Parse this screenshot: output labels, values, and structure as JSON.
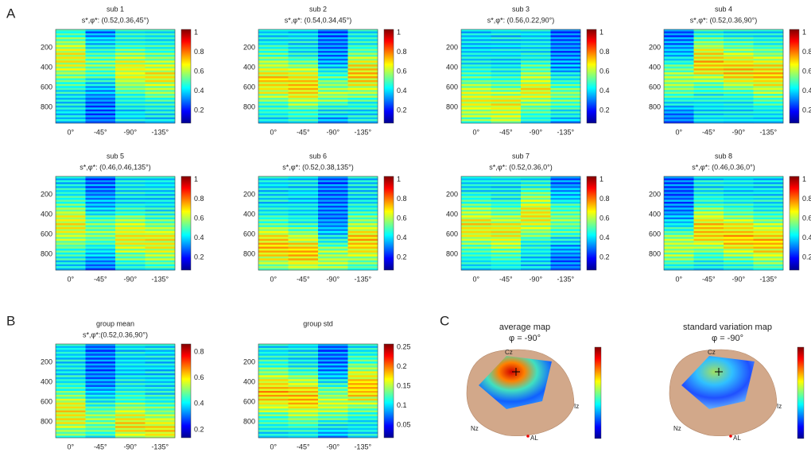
{
  "panel_labels": [
    "A",
    "B",
    "C"
  ],
  "heatmap_yticks": [
    200,
    400,
    600,
    800
  ],
  "heatmap_xticks": [
    "0°",
    "-45°",
    "-90°",
    "-135°"
  ],
  "heatmaps": [
    {
      "title": "sub 1",
      "subtitle": "s*,φ*: (0.52,0.36,45°)",
      "colorbar_ticks": [
        0.2,
        0.4,
        0.6,
        0.8,
        1
      ]
    },
    {
      "title": "sub 2",
      "subtitle": "s*,φ*: (0.54,0.34,45°)",
      "colorbar_ticks": [
        0.2,
        0.4,
        0.6,
        0.8,
        1
      ]
    },
    {
      "title": "sub 3",
      "subtitle": "s*,φ*: (0.56,0.22,90°)",
      "colorbar_ticks": [
        0.2,
        0.4,
        0.6,
        0.8,
        1
      ]
    },
    {
      "title": "sub 4",
      "subtitle": "s*,φ*: (0.52,0.36,90°)",
      "colorbar_ticks": [
        0.2,
        0.4,
        0.6,
        0.8,
        1
      ]
    },
    {
      "title": "sub 5",
      "subtitle": "s*,φ*: (0.46,0.46,135°)",
      "colorbar_ticks": [
        0.2,
        0.4,
        0.6,
        0.8,
        1
      ]
    },
    {
      "title": "sub 6",
      "subtitle": "s*,φ*: (0.52,0.38,135°)",
      "colorbar_ticks": [
        0.2,
        0.4,
        0.6,
        0.8,
        1
      ]
    },
    {
      "title": "sub 7",
      "subtitle": "s*,φ*: (0.52,0.36,0°)",
      "colorbar_ticks": [
        0.2,
        0.4,
        0.6,
        0.8,
        1
      ]
    },
    {
      "title": "sub 8",
      "subtitle": "s*,φ*: (0.46,0.36,0°)",
      "colorbar_ticks": [
        0.2,
        0.4,
        0.6,
        0.8,
        1
      ]
    },
    {
      "title": "group mean",
      "subtitle": "s*,φ*:(0.52,0.36,90°)",
      "colorbar_ticks": [
        0.2,
        0.4,
        0.6,
        0.8
      ]
    },
    {
      "title": "group std",
      "colorbar_ticks": [
        0.05,
        0.1,
        0.15,
        0.2,
        0.25
      ]
    }
  ],
  "head_maps": [
    {
      "title": "average map",
      "subtitle": "φ = -90°"
    },
    {
      "title": "standard variation map",
      "subtitle": "φ = -90°"
    }
  ],
  "head_labels": [
    "Cz",
    "Iz",
    "Nz",
    "AL"
  ]
}
